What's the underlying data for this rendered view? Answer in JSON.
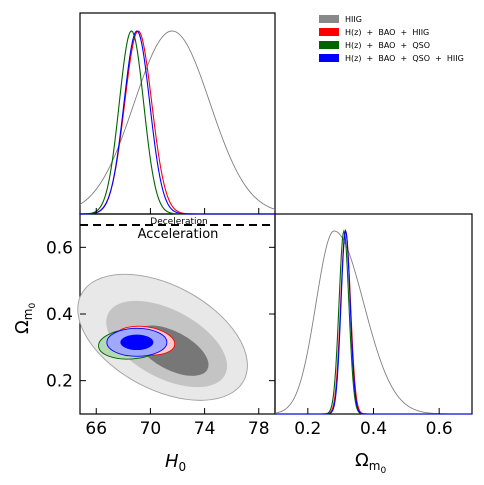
{
  "chart_data": {
    "type": "corner-plot",
    "parameters": [
      "H0",
      "Omega_m0"
    ],
    "axis_labels": {
      "H0": "H",
      "H0_sub": "0",
      "Omega_m0": "Ω",
      "Omega_m0_sub": "m",
      "Omega_m0_subsub": "0"
    },
    "H0_ticks": [
      "66",
      "70",
      "74",
      "78"
    ],
    "H0_tick_values": [
      66,
      70,
      74,
      78
    ],
    "H0_range": [
      64.8,
      79.2
    ],
    "Om_ticks": [
      "0.2",
      "0.4",
      "0.6"
    ],
    "Om_tick_values": [
      0.2,
      0.4,
      0.6
    ],
    "Om_range": [
      0.1,
      0.7
    ],
    "legend": {
      "position": "top-right",
      "entries": [
        {
          "label": "HIIG",
          "color": "#888888"
        },
        {
          "label": "H(z)  +  BAO  +  HIIG",
          "color": "#ff0000"
        },
        {
          "label": "H(z)  +  BAO  +  QSO",
          "color": "#006400"
        },
        {
          "label": "H(z)  +  BAO  +  QSO  +  HIIG",
          "color": "#0000ff"
        }
      ]
    },
    "annotations": {
      "upper": "Deceleration",
      "lower": "Acceleration",
      "line_Om": 0.667
    },
    "series": [
      {
        "key": "hiig",
        "color": "#808080",
        "H0_mean": 71.6,
        "H0_sigma": 2.8,
        "Om_mean": 0.28,
        "Om_sigma": 0.055,
        "Om_right_sigma": 0.09,
        "fill_inner": "#777777",
        "fill_outer": "#c4c4c4",
        "fill_outer2": "#e8e8e8"
      },
      {
        "key": "hz_bao_hiig",
        "color": "#ff0000",
        "H0_mean": 69.1,
        "H0_sigma": 1.0,
        "Om_mean": 0.315,
        "Om_sigma": 0.015,
        "fill_inner": "#ff7070",
        "fill_outer": "#ffc8c8"
      },
      {
        "key": "hz_bao_qso",
        "color": "#006400",
        "H0_mean": 68.6,
        "H0_sigma": 0.9,
        "Om_mean": 0.31,
        "Om_sigma": 0.015,
        "fill_inner": "#4c9a4c",
        "fill_outer": "#b5d9b5"
      },
      {
        "key": "hz_bao_qso_hiig",
        "color": "#0000ff",
        "H0_mean": 69.0,
        "H0_sigma": 0.95,
        "Om_mean": 0.315,
        "Om_sigma": 0.014,
        "fill_inner": "#0000ff",
        "fill_outer": "#a0a8ff"
      }
    ]
  }
}
